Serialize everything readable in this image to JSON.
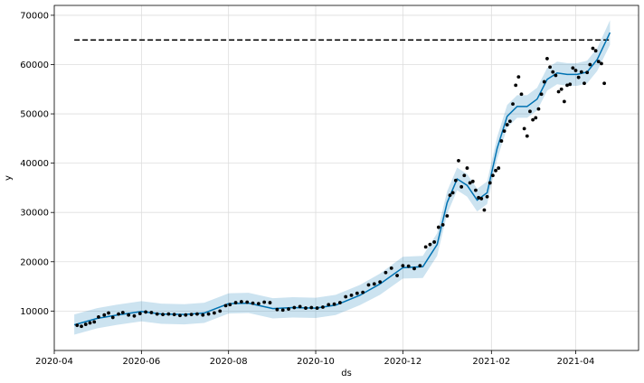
{
  "chart_data": {
    "type": "line",
    "title": "",
    "xlabel": "ds",
    "ylabel": "y",
    "grid": true,
    "x_axis": {
      "type": "date",
      "min": "2020-04-01",
      "max": "2021-05-15",
      "ticks": [
        "2020-04-01",
        "2020-06-01",
        "2020-08-01",
        "2020-10-01",
        "2020-12-01",
        "2021-02-01",
        "2021-04-01"
      ],
      "tick_labels": [
        "2020-04",
        "2020-06",
        "2020-08",
        "2020-10",
        "2020-12",
        "2021-02",
        "2021-04"
      ]
    },
    "y_axis": {
      "min": 2000,
      "max": 72000,
      "ticks": [
        10000,
        20000,
        30000,
        40000,
        50000,
        60000,
        70000
      ],
      "tick_labels": [
        "10000",
        "20000",
        "30000",
        "40000",
        "50000",
        "60000",
        "70000"
      ]
    },
    "colors": {
      "forecast": "#0072b2",
      "interval": "#0072b2",
      "observed": "#000000",
      "cap": "#000000",
      "grid": "#dddddd"
    },
    "cap": {
      "value": 65000,
      "x": [
        "2020-04-15",
        "2021-04-25"
      ],
      "style": "dashed"
    },
    "series": [
      {
        "kind": "forecast",
        "x": [
          "2020-04-15",
          "2020-05-01",
          "2020-05-15",
          "2020-06-01",
          "2020-06-15",
          "2020-07-01",
          "2020-07-15",
          "2020-08-01",
          "2020-08-15",
          "2020-09-01",
          "2020-09-15",
          "2020-10-01",
          "2020-10-15",
          "2020-11-01",
          "2020-11-15",
          "2020-12-01",
          "2020-12-15",
          "2020-12-25",
          "2021-01-01",
          "2021-01-08",
          "2021-01-15",
          "2021-01-22",
          "2021-01-29",
          "2021-02-05",
          "2021-02-12",
          "2021-02-19",
          "2021-02-26",
          "2021-03-05",
          "2021-03-12",
          "2021-03-19",
          "2021-03-26",
          "2021-04-02",
          "2021-04-09",
          "2021-04-16",
          "2021-04-25"
        ],
        "y": [
          7200,
          8500,
          9200,
          9900,
          9400,
          9300,
          9600,
          11500,
          11600,
          10500,
          10700,
          10600,
          11200,
          13200,
          15500,
          18800,
          19000,
          23500,
          32000,
          36800,
          35500,
          32500,
          34000,
          43000,
          49500,
          51500,
          51500,
          53000,
          57000,
          58300,
          58000,
          58000,
          58500,
          61000,
          66500
        ],
        "lower": [
          5200,
          6500,
          7200,
          7900,
          7400,
          7300,
          7600,
          9500,
          9600,
          8500,
          8700,
          8600,
          9200,
          11200,
          13300,
          16600,
          16700,
          21200,
          29700,
          34500,
          33200,
          30200,
          31700,
          40800,
          47200,
          49200,
          49200,
          50700,
          54700,
          56000,
          55700,
          55700,
          56200,
          58700,
          64000
        ],
        "upper": [
          9300,
          10600,
          11300,
          12000,
          11500,
          11400,
          11700,
          13600,
          13700,
          12600,
          12800,
          12700,
          13300,
          15300,
          17600,
          21000,
          21200,
          25800,
          34300,
          39100,
          37800,
          34800,
          36300,
          45300,
          51800,
          53800,
          53800,
          55300,
          59300,
          60600,
          60300,
          60300,
          60800,
          63300,
          69000
        ]
      },
      {
        "kind": "observed",
        "x": [
          "2020-04-17",
          "2020-04-20",
          "2020-04-23",
          "2020-04-26",
          "2020-04-29",
          "2020-05-02",
          "2020-05-06",
          "2020-05-09",
          "2020-05-12",
          "2020-05-16",
          "2020-05-19",
          "2020-05-23",
          "2020-05-27",
          "2020-05-31",
          "2020-06-04",
          "2020-06-08",
          "2020-06-12",
          "2020-06-16",
          "2020-06-20",
          "2020-06-24",
          "2020-06-28",
          "2020-07-02",
          "2020-07-06",
          "2020-07-10",
          "2020-07-14",
          "2020-07-18",
          "2020-07-22",
          "2020-07-26",
          "2020-07-30",
          "2020-08-02",
          "2020-08-06",
          "2020-08-10",
          "2020-08-14",
          "2020-08-18",
          "2020-08-22",
          "2020-08-26",
          "2020-08-30",
          "2020-09-04",
          "2020-09-08",
          "2020-09-12",
          "2020-09-16",
          "2020-09-20",
          "2020-09-24",
          "2020-09-28",
          "2020-10-02",
          "2020-10-06",
          "2020-10-10",
          "2020-10-14",
          "2020-10-18",
          "2020-10-22",
          "2020-10-26",
          "2020-10-30",
          "2020-11-03",
          "2020-11-07",
          "2020-11-11",
          "2020-11-15",
          "2020-11-19",
          "2020-11-23",
          "2020-11-27",
          "2020-12-01",
          "2020-12-05",
          "2020-12-09",
          "2020-12-13",
          "2020-12-17",
          "2020-12-20",
          "2020-12-23",
          "2020-12-26",
          "2020-12-29",
          "2021-01-01",
          "2021-01-03",
          "2021-01-05",
          "2021-01-07",
          "2021-01-09",
          "2021-01-11",
          "2021-01-13",
          "2021-01-15",
          "2021-01-17",
          "2021-01-19",
          "2021-01-21",
          "2021-01-23",
          "2021-01-25",
          "2021-01-27",
          "2021-01-29",
          "2021-01-31",
          "2021-02-02",
          "2021-02-04",
          "2021-02-06",
          "2021-02-08",
          "2021-02-10",
          "2021-02-12",
          "2021-02-14",
          "2021-02-16",
          "2021-02-18",
          "2021-02-20",
          "2021-02-22",
          "2021-02-24",
          "2021-02-26",
          "2021-02-28",
          "2021-03-02",
          "2021-03-04",
          "2021-03-06",
          "2021-03-08",
          "2021-03-10",
          "2021-03-12",
          "2021-03-14",
          "2021-03-16",
          "2021-03-18",
          "2021-03-20",
          "2021-03-22",
          "2021-03-24",
          "2021-03-26",
          "2021-03-28",
          "2021-03-30",
          "2021-04-01",
          "2021-04-03",
          "2021-04-05",
          "2021-04-07",
          "2021-04-09",
          "2021-04-11",
          "2021-04-13",
          "2021-04-15",
          "2021-04-17",
          "2021-04-19",
          "2021-04-21"
        ],
        "y": [
          7100,
          6900,
          7300,
          7600,
          7800,
          8800,
          9200,
          9600,
          8700,
          9400,
          9700,
          9200,
          9000,
          9500,
          9800,
          9700,
          9400,
          9300,
          9400,
          9300,
          9100,
          9200,
          9300,
          9400,
          9200,
          9400,
          9600,
          10000,
          11100,
          11300,
          11700,
          11900,
          11800,
          11600,
          11500,
          11800,
          11700,
          10300,
          10200,
          10400,
          10700,
          10900,
          10600,
          10700,
          10600,
          10800,
          11300,
          11400,
          11700,
          12900,
          13200,
          13600,
          13800,
          15300,
          15500,
          15900,
          17800,
          18700,
          17200,
          19200,
          19100,
          18600,
          19200,
          23000,
          23500,
          24000,
          27000,
          27500,
          29300,
          33500,
          34000,
          36500,
          40500,
          35200,
          37500,
          39000,
          36000,
          36300,
          34500,
          33000,
          32800,
          30500,
          33200,
          36000,
          37500,
          38500,
          39000,
          44500,
          46500,
          47800,
          48500,
          52000,
          55800,
          57500,
          54000,
          47000,
          45500,
          50500,
          48800,
          49200,
          51000,
          54000,
          56500,
          61200,
          59500,
          58500,
          57800,
          54500,
          55000,
          52500,
          55800,
          56000,
          59300,
          58800,
          57400,
          58500,
          56200,
          58400,
          60000,
          63300,
          62800,
          60600,
          60200,
          56200
        ]
      }
    ]
  }
}
